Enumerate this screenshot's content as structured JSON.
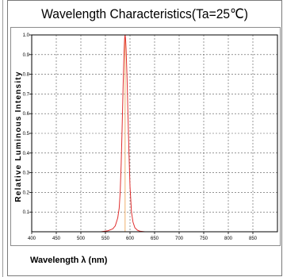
{
  "chart_data": {
    "type": "line",
    "title": "Wavelength  Characteristics(Ta=25℃)",
    "xlabel": "Wavelength  λ  (nm)",
    "ylabel": "Relative  Luminous  Intensity",
    "xlim": [
      400,
      900
    ],
    "ylim": [
      0,
      1.0
    ],
    "xticks": [
      400,
      450,
      500,
      550,
      600,
      650,
      700,
      750,
      800,
      850
    ],
    "yticks": [
      0.1,
      0.2,
      0.3,
      0.4,
      0.5,
      0.6,
      0.7,
      0.8,
      0.9,
      1.0
    ],
    "xtick_labels": [
      "400",
      "450",
      "500",
      "550",
      "600",
      "650",
      "700",
      "750",
      "800",
      "850"
    ],
    "ytick_labels": [
      "0.1",
      "0.2",
      "0.3",
      "0.4",
      "0.5",
      "0.6",
      "0.7",
      "0.8",
      "0.9",
      "1.0"
    ],
    "grid": true,
    "grid_style": "dashed",
    "series": [
      {
        "color": "#e03030",
        "x": [
          400,
          540,
          555,
          565,
          570,
          575,
          578,
          580,
          582,
          584,
          586,
          588,
          589,
          590,
          591,
          592,
          594,
          596,
          598,
          600,
          603,
          606,
          610,
          615,
          620,
          630,
          700,
          900
        ],
        "y": [
          0,
          0,
          0.005,
          0.015,
          0.03,
          0.07,
          0.12,
          0.2,
          0.34,
          0.53,
          0.74,
          0.92,
          0.98,
          1.0,
          0.98,
          0.93,
          0.78,
          0.58,
          0.39,
          0.23,
          0.1,
          0.05,
          0.02,
          0.008,
          0.003,
          0,
          0,
          0
        ]
      }
    ],
    "peak_marker": {
      "x": 590,
      "color": "#f0b070"
    }
  },
  "colors": {
    "grid": "#555555",
    "axis": "#000000",
    "frame": "#7a7a7a"
  }
}
